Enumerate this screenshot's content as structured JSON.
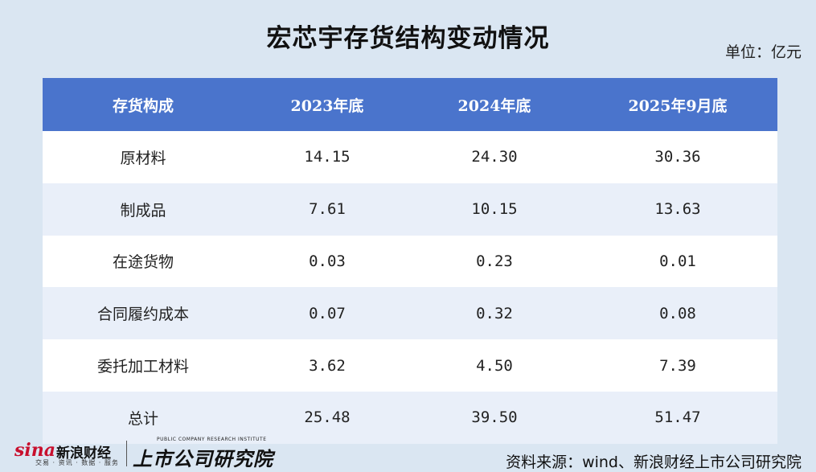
{
  "title": "宏芯宇存货结构变动情况",
  "unit": "单位：亿元",
  "table": {
    "headers": [
      "存货构成",
      "2023年底",
      "2024年底",
      "2025年9月底"
    ],
    "rows": [
      [
        "原材料",
        "14.15",
        "24.30",
        "30.36"
      ],
      [
        "制成品",
        "7.61",
        "10.15",
        "13.63"
      ],
      [
        "在途货物",
        "0.03",
        "0.23",
        "0.01"
      ],
      [
        "合同履约成本",
        "0.07",
        "0.32",
        "0.08"
      ],
      [
        "委托加工材料",
        "3.62",
        "4.50",
        "7.39"
      ],
      [
        "总计",
        "25.48",
        "39.50",
        "51.47"
      ]
    ]
  },
  "source": "资料来源：wind、新浪财经上市公司研究院",
  "logo_sina": {
    "mark": "sina",
    "name": "新浪财经",
    "tagline": "交易 · 资讯 · 数据 · 服务"
  },
  "logo_institute": {
    "name": "上市公司研究院",
    "english": "PUBLIC COMPANY RESEARCH INSTITUTE"
  }
}
